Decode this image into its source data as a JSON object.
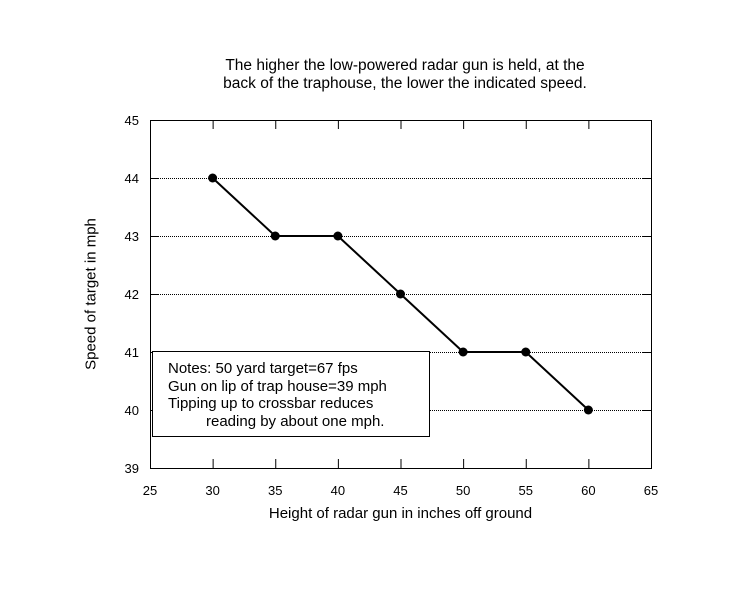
{
  "chart_data": {
    "type": "line",
    "title": "The higher the low-powered radar gun is held, at the back of the traphouse, the lower the indicated speed.",
    "title_lines": [
      "The higher the low-powered radar gun is held, at the",
      "back of the traphouse, the lower the indicated speed."
    ],
    "xlabel": "Height of radar gun in inches off ground",
    "ylabel": "Speed of target in mph",
    "x": [
      30,
      35,
      40,
      45,
      50,
      55,
      60
    ],
    "values": [
      44,
      43,
      43,
      42,
      41,
      41,
      40
    ],
    "xlim": [
      25,
      65
    ],
    "ylim": [
      39,
      45
    ],
    "xticks": [
      "25",
      "30",
      "35",
      "40",
      "45",
      "50",
      "55",
      "60",
      "65"
    ],
    "yticks": [
      "39",
      "40",
      "41",
      "42",
      "43",
      "44",
      "45"
    ],
    "grid": "horizontal dotted",
    "legend": null,
    "annotation": [
      "Notes: 50 yard target=67 fps",
      "Gun on lip of trap house=39 mph",
      "Tipping up to crossbar reduces",
      "reading by about one mph."
    ]
  },
  "colors": {
    "line": "#000000",
    "background": "#ffffff",
    "grid": "#000000"
  }
}
